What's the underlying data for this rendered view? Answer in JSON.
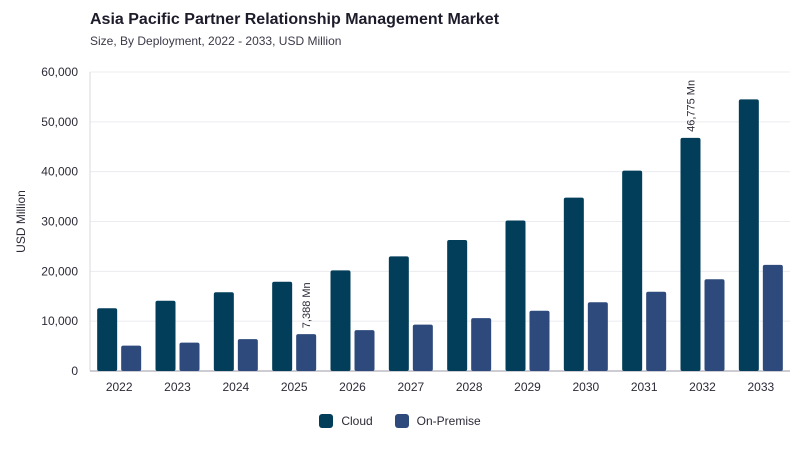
{
  "chart_data": {
    "type": "bar",
    "title": "Asia Pacific Partner Relationship Management Market",
    "subtitle": "Size, By Deployment, 2022 - 2033, USD Million",
    "ylabel": "USD Million",
    "xlabel": "",
    "ylim": [
      0,
      60000
    ],
    "yticks": [
      0,
      10000,
      20000,
      30000,
      40000,
      50000,
      60000
    ],
    "ytick_labels": [
      "0",
      "10,000",
      "20,000",
      "30,000",
      "40,000",
      "50,000",
      "60,000"
    ],
    "grid": true,
    "legend_position": "bottom-center",
    "categories": [
      "2022",
      "2023",
      "2024",
      "2025",
      "2026",
      "2027",
      "2028",
      "2029",
      "2030",
      "2031",
      "2032",
      "2033"
    ],
    "series": [
      {
        "name": "Cloud",
        "color": "#023e5a",
        "values": [
          12600,
          14100,
          15800,
          17900,
          20200,
          23000,
          26300,
          30200,
          34800,
          40200,
          46775,
          54500
        ]
      },
      {
        "name": "On-Premise",
        "color": "#2e4a7c",
        "values": [
          5100,
          5700,
          6400,
          7388,
          8200,
          9300,
          10600,
          12100,
          13800,
          15900,
          18400,
          21300
        ]
      }
    ],
    "annotations": [
      {
        "series": "On-Premise",
        "category": "2025",
        "text": "7,388 Mn"
      },
      {
        "series": "Cloud",
        "category": "2032",
        "text": "46,775 Mn"
      }
    ]
  }
}
